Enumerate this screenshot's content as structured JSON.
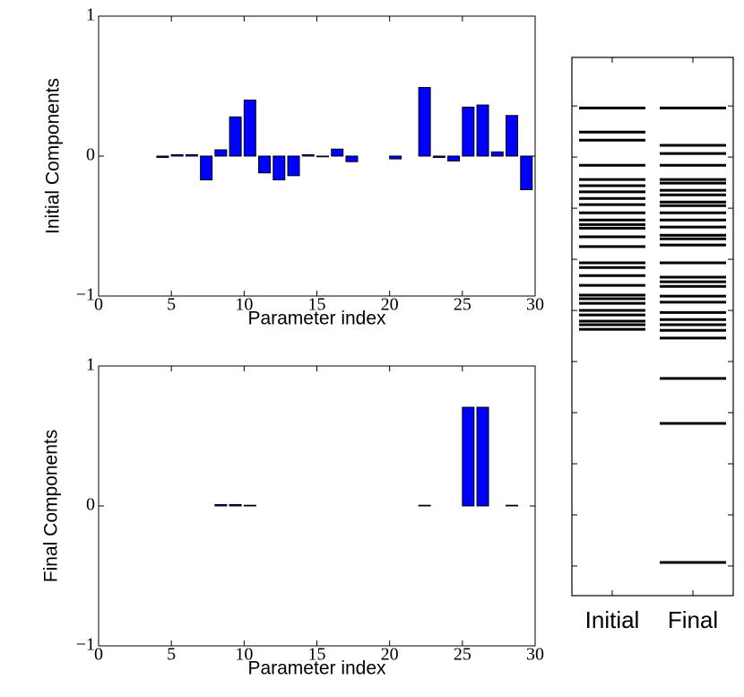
{
  "chart_data": [
    {
      "type": "bar",
      "ylabel": "Initial Components",
      "xlabel": "Parameter index",
      "color": "#0000ff",
      "x": [
        0,
        1,
        2,
        3,
        4,
        5,
        6,
        7,
        8,
        9,
        10,
        11,
        12,
        13,
        14,
        15,
        16,
        17,
        18,
        19,
        20,
        21,
        22,
        23,
        24,
        25,
        26,
        27,
        28,
        29
      ],
      "values": [
        0,
        0,
        0,
        0,
        -0.01,
        0.01,
        0.01,
        -0.17,
        0.045,
        0.28,
        0.4,
        -0.12,
        -0.17,
        -0.14,
        0.01,
        -0.005,
        0.05,
        -0.04,
        0,
        0,
        -0.02,
        0,
        0.49,
        -0.01,
        -0.035,
        0.35,
        0.365,
        0.03,
        0.29,
        -0.24
      ],
      "xlim": [
        0,
        30
      ],
      "xticks": [
        0,
        5,
        10,
        15,
        20,
        25,
        30
      ],
      "ylim": [
        -1,
        1
      ],
      "yticks": [
        {
          "value": -1,
          "label": "−1"
        },
        0,
        1
      ]
    },
    {
      "type": "bar",
      "ylabel": "Final Components",
      "xlabel": "Parameter index",
      "color": "#0000ff",
      "x": [
        0,
        1,
        2,
        3,
        4,
        5,
        6,
        7,
        8,
        9,
        10,
        11,
        12,
        13,
        14,
        15,
        16,
        17,
        18,
        19,
        20,
        21,
        22,
        23,
        24,
        25,
        26,
        27,
        28,
        29
      ],
      "values": [
        0,
        0,
        0,
        0,
        0,
        0,
        0,
        0,
        0.01,
        0.01,
        0.005,
        0,
        0,
        0,
        0,
        0,
        0,
        0,
        0,
        0,
        0,
        0,
        0.005,
        0,
        0,
        0.705,
        0.705,
        0,
        0.005,
        0
      ],
      "xlim": [
        0,
        30
      ],
      "xticks": [
        0,
        5,
        10,
        15,
        20,
        25,
        30
      ],
      "ylim": [
        -1,
        1
      ],
      "yticks": [
        {
          "value": -1,
          "label": "−1"
        },
        0,
        1
      ]
    },
    {
      "type": "spectrum",
      "categories": [
        "Initial",
        "Final"
      ],
      "color": "#000000",
      "values": [
        [
          8.96,
          8.49,
          8.33,
          7.84,
          7.56,
          7.44,
          7.32,
          7.19,
          7.07,
          6.91,
          6.77,
          6.68,
          6.61,
          6.44,
          6.25,
          5.93,
          5.84,
          5.68,
          5.49,
          5.3,
          5.23,
          5.14,
          5.0,
          4.91,
          4.79,
          4.72,
          4.63
        ],
        [
          8.96,
          8.23,
          8.07,
          7.84,
          7.56,
          7.49,
          7.35,
          7.26,
          7.12,
          7.05,
          6.91,
          6.77,
          6.63,
          6.47,
          6.4,
          6.28,
          5.93,
          5.65,
          5.56,
          5.47,
          5.28,
          5.16,
          4.96,
          4.82,
          4.72,
          4.61,
          4.46,
          3.67,
          2.79,
          0.07
        ]
      ],
      "ylim": [
        -0.58,
        9.95
      ],
      "yticks": [
        0,
        1,
        2,
        3,
        4,
        5,
        6,
        7,
        8,
        9
      ]
    }
  ]
}
